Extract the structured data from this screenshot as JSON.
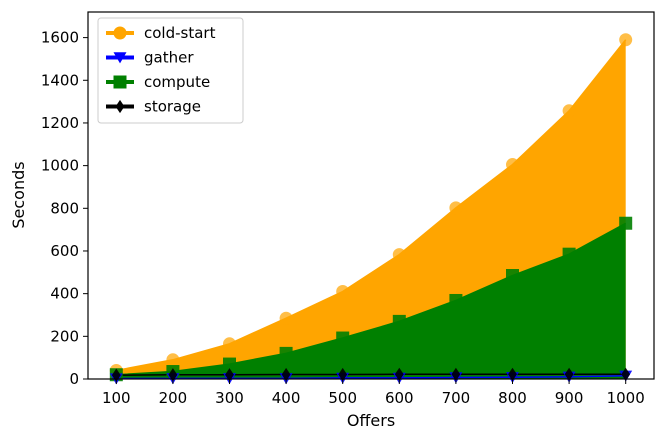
{
  "chart_data": {
    "type": "area",
    "title": "",
    "xlabel": "Offers",
    "ylabel": "Seconds",
    "x": [
      100,
      200,
      300,
      400,
      500,
      600,
      700,
      800,
      900,
      1000
    ],
    "xlim": [
      50,
      1050
    ],
    "ylim": [
      0,
      1720
    ],
    "xticks": [
      100,
      200,
      300,
      400,
      500,
      600,
      700,
      800,
      900,
      1000
    ],
    "yticks": [
      0,
      200,
      400,
      600,
      800,
      1000,
      1200,
      1400,
      1600
    ],
    "grid": false,
    "legend_position": "top-left",
    "series": [
      {
        "name": "cold-start",
        "color": "#ffa500",
        "marker": "circle",
        "values": [
          40,
          90,
          165,
          285,
          410,
          583,
          802,
          1005,
          1257,
          1590
        ]
      },
      {
        "name": "gather",
        "color": "#0000ff",
        "marker": "triangle-down",
        "values": [
          2,
          3,
          3,
          3,
          5,
          5,
          7,
          8,
          10,
          15
        ]
      },
      {
        "name": "compute",
        "color": "#008000",
        "marker": "square",
        "values": [
          20,
          35,
          70,
          120,
          192,
          270,
          368,
          485,
          585,
          730
        ]
      },
      {
        "name": "storage",
        "color": "#000000",
        "marker": "diamond",
        "values": [
          18,
          20,
          20,
          21,
          21,
          22,
          22,
          22,
          22,
          22
        ]
      }
    ]
  }
}
